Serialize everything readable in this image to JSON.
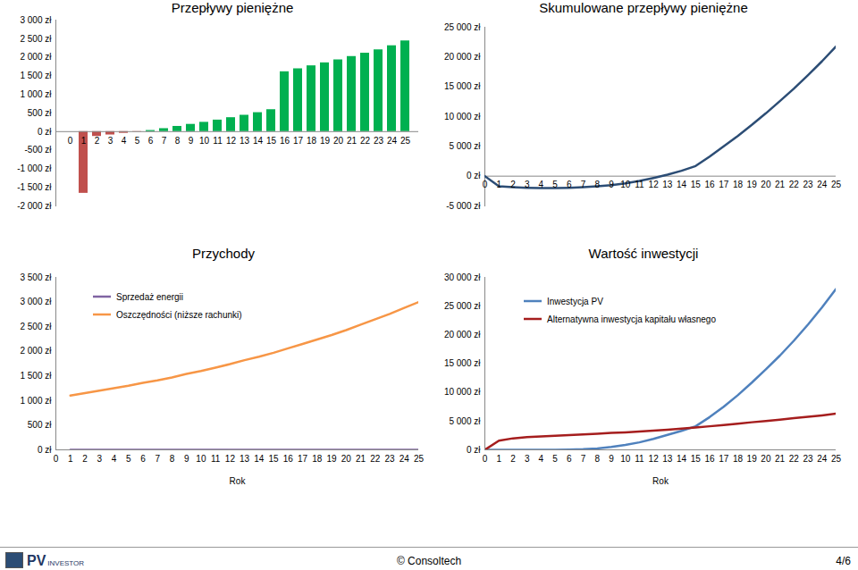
{
  "chart_data": [
    {
      "type": "bar",
      "title": "Przepływy pieniężne",
      "categories": [
        0,
        1,
        2,
        3,
        4,
        5,
        6,
        7,
        8,
        9,
        10,
        11,
        12,
        13,
        14,
        15,
        16,
        17,
        18,
        19,
        20,
        21,
        22,
        23,
        24,
        25
      ],
      "values": [
        0,
        -1660,
        -130,
        -90,
        -45,
        -10,
        30,
        80,
        140,
        195,
        250,
        310,
        375,
        440,
        510,
        590,
        1610,
        1690,
        1770,
        1850,
        1930,
        2020,
        2110,
        2200,
        2310,
        2440
      ],
      "colors": [
        "#00b050",
        "#c0504d",
        "#c0504d",
        "#c0504d",
        "#c0504d",
        "#c0504d",
        "#00b050",
        "#00b050",
        "#00b050",
        "#00b050",
        "#00b050",
        "#00b050",
        "#00b050",
        "#00b050",
        "#00b050",
        "#00b050",
        "#00b050",
        "#00b050",
        "#00b050",
        "#00b050",
        "#00b050",
        "#00b050",
        "#00b050",
        "#00b050",
        "#00b050",
        "#00b050"
      ],
      "ylim": [
        -2000,
        3000
      ],
      "yticks": [
        {
          "value": -2000,
          "label": "-2 000 zł"
        },
        {
          "value": -1500,
          "label": "-1 500 zł"
        },
        {
          "value": -1000,
          "label": "-1 000 zł"
        },
        {
          "value": -500,
          "label": "-500 zł"
        },
        {
          "value": 0,
          "label": "0 zł"
        },
        {
          "value": 500,
          "label": "500 zł"
        },
        {
          "value": 1000,
          "label": "1 000 zł"
        },
        {
          "value": 1500,
          "label": "1 500 zł"
        },
        {
          "value": 2000,
          "label": "2 000 zł"
        },
        {
          "value": 2500,
          "label": "2 500 zł"
        },
        {
          "value": 3000,
          "label": "3 000 zł"
        }
      ]
    },
    {
      "type": "line",
      "title": "Skumulowane przepływy pieniężne",
      "x": [
        0,
        1,
        2,
        3,
        4,
        5,
        6,
        7,
        8,
        9,
        10,
        11,
        12,
        13,
        14,
        15,
        16,
        17,
        18,
        19,
        20,
        21,
        22,
        23,
        24,
        25
      ],
      "values": [
        0,
        -1700,
        -1850,
        -1950,
        -2000,
        -2000,
        -1950,
        -1850,
        -1700,
        -1500,
        -1200,
        -800,
        -300,
        250,
        900,
        1700,
        3300,
        5000,
        6750,
        8600,
        10550,
        12600,
        14700,
        16950,
        19300,
        21800
      ],
      "color": "#2c4d75",
      "xlim": [
        0,
        25
      ],
      "xticks": [
        0,
        1,
        2,
        3,
        4,
        5,
        6,
        7,
        8,
        9,
        10,
        11,
        12,
        13,
        14,
        15,
        16,
        17,
        18,
        19,
        20,
        21,
        22,
        23,
        24,
        25
      ],
      "ylim": [
        -5000,
        25000
      ],
      "yticks": [
        {
          "value": -5000,
          "label": "-5 000 zł"
        },
        {
          "value": 0,
          "label": "0 zł"
        },
        {
          "value": 5000,
          "label": "5 000 zł"
        },
        {
          "value": 10000,
          "label": "10 000 zł"
        },
        {
          "value": 15000,
          "label": "15 000 zł"
        },
        {
          "value": 20000,
          "label": "20 000 zł"
        },
        {
          "value": 25000,
          "label": "25 000 zł"
        }
      ]
    },
    {
      "type": "line",
      "title": "Przychody",
      "x_label": "Rok",
      "x": [
        1,
        2,
        3,
        4,
        5,
        6,
        7,
        8,
        9,
        10,
        11,
        12,
        13,
        14,
        15,
        16,
        17,
        18,
        19,
        20,
        21,
        22,
        23,
        24,
        25
      ],
      "series": [
        {
          "name": "Sprzedaż energii",
          "color": "#8064a2",
          "values": [
            0,
            0,
            0,
            0,
            0,
            0,
            0,
            0,
            0,
            0,
            0,
            0,
            0,
            0,
            0,
            0,
            0,
            0,
            0,
            0,
            0,
            0,
            0,
            0,
            0
          ]
        },
        {
          "name": "Oszczędności (niższe rachunki)",
          "color": "#f79646",
          "values": [
            1100,
            1150,
            1200,
            1250,
            1300,
            1360,
            1410,
            1470,
            1540,
            1600,
            1670,
            1740,
            1820,
            1890,
            1970,
            2060,
            2150,
            2240,
            2330,
            2430,
            2540,
            2650,
            2760,
            2880,
            3000
          ]
        }
      ],
      "legend": "top-left",
      "xlim": [
        0,
        25
      ],
      "xticks": [
        0,
        1,
        2,
        3,
        4,
        5,
        6,
        7,
        8,
        9,
        10,
        11,
        12,
        13,
        14,
        15,
        16,
        17,
        18,
        19,
        20,
        21,
        22,
        23,
        24,
        25
      ],
      "ylim": [
        0,
        3500
      ],
      "yticks": [
        {
          "value": 0,
          "label": "0 zł"
        },
        {
          "value": 500,
          "label": "500 zł"
        },
        {
          "value": 1000,
          "label": "1 000 zł"
        },
        {
          "value": 1500,
          "label": "1 500 zł"
        },
        {
          "value": 2000,
          "label": "2 000 zł"
        },
        {
          "value": 2500,
          "label": "2 500 zł"
        },
        {
          "value": 3000,
          "label": "3 000 zł"
        },
        {
          "value": 3500,
          "label": "3 500 zł"
        }
      ]
    },
    {
      "type": "line",
      "title": "Wartość inwestycji",
      "x_label": "Rok",
      "x": [
        0,
        1,
        2,
        3,
        4,
        5,
        6,
        7,
        8,
        9,
        10,
        11,
        12,
        13,
        14,
        15,
        16,
        17,
        18,
        19,
        20,
        21,
        22,
        23,
        24,
        25
      ],
      "series": [
        {
          "name": "Inwestycja PV",
          "color": "#4f81bd",
          "values": [
            0,
            0,
            0,
            0,
            0,
            0,
            30,
            100,
            250,
            500,
            850,
            1300,
            1900,
            2600,
            3300,
            4100,
            5700,
            7500,
            9500,
            11700,
            14000,
            16400,
            19000,
            21800,
            24800,
            28000
          ]
        },
        {
          "name": "Alternatywna inwestycja kapitału własnego",
          "color": "#a51d1d",
          "values": [
            0,
            1600,
            2000,
            2200,
            2350,
            2450,
            2550,
            2700,
            2800,
            2950,
            3050,
            3200,
            3350,
            3500,
            3700,
            3900,
            4100,
            4300,
            4550,
            4800,
            5000,
            5250,
            5500,
            5750,
            6000,
            6300
          ]
        }
      ],
      "legend": "top-left",
      "xlim": [
        0,
        25
      ],
      "xticks": [
        0,
        1,
        2,
        3,
        4,
        5,
        6,
        7,
        8,
        9,
        10,
        11,
        12,
        13,
        14,
        15,
        16,
        17,
        18,
        19,
        20,
        21,
        22,
        23,
        24,
        25
      ],
      "ylim": [
        0,
        30000
      ],
      "yticks": [
        {
          "value": 0,
          "label": "0 zł"
        },
        {
          "value": 5000,
          "label": "5 000 zł"
        },
        {
          "value": 10000,
          "label": "10 000 zł"
        },
        {
          "value": 15000,
          "label": "15 000 zł"
        },
        {
          "value": 20000,
          "label": "20 000 zł"
        },
        {
          "value": 25000,
          "label": "25 000 zł"
        },
        {
          "value": 30000,
          "label": "30 000 zł"
        }
      ]
    }
  ],
  "footer": {
    "logo_main": "PV",
    "logo_sub": "INVESTOR",
    "copyright": "© Consoltech",
    "page": "4/6"
  }
}
